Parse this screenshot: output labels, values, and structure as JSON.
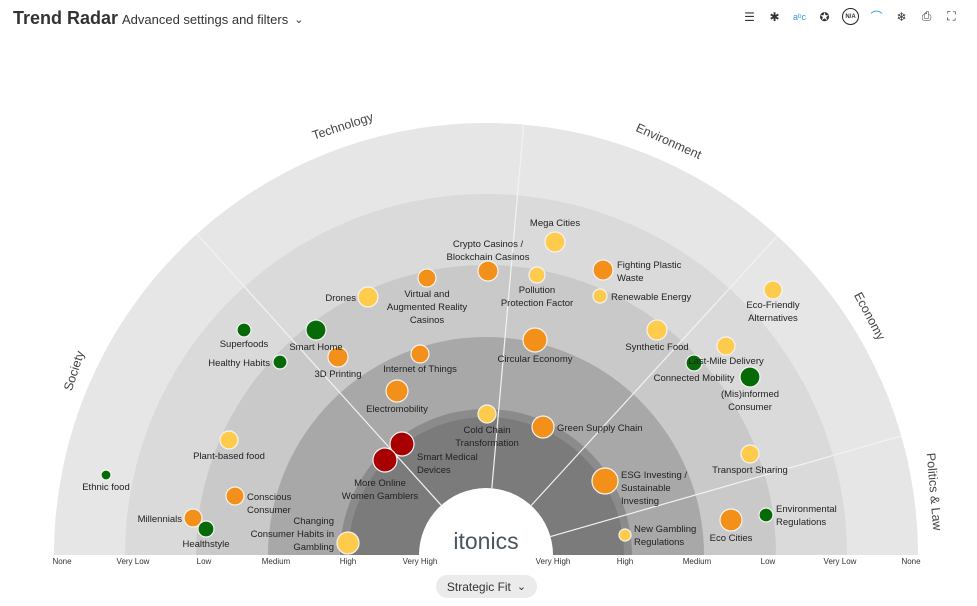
{
  "header": {
    "title": "Trend Radar",
    "advanced_label": "Advanced settings and filters"
  },
  "toolbar": [
    {
      "icon": "list-icon",
      "glyph": "☰"
    },
    {
      "icon": "network-icon",
      "glyph": "✱"
    },
    {
      "icon": "text-size-icon",
      "glyph": "aᵇc"
    },
    {
      "icon": "star-radar-icon",
      "glyph": "✪"
    },
    {
      "icon": "na-icon",
      "glyph": "N/A"
    },
    {
      "icon": "arc-icon",
      "glyph": "⌒"
    },
    {
      "icon": "snowflake-radar-icon",
      "glyph": "❄"
    },
    {
      "icon": "pdf-icon",
      "glyph": "⎙"
    },
    {
      "icon": "fullscreen-icon",
      "glyph": "⛶"
    }
  ],
  "sectors": [
    "Society",
    "Technology",
    "Environment",
    "Economy",
    "Politics & Law"
  ],
  "ticks_left": [
    "None",
    "Very Low",
    "Low",
    "Medium",
    "High",
    "Very High"
  ],
  "ticks_right": [
    "Very High",
    "High",
    "Medium",
    "Low",
    "Very Low",
    "None"
  ],
  "logo": "itonics",
  "colors": {
    "yellow": "#fecb4d",
    "orange": "#f3901a",
    "green": "#066b06",
    "red": "#a80000",
    "accent": "#2f9be0"
  },
  "trends": [
    {
      "lines": [
        "Mega Cities"
      ],
      "color": "yellow"
    },
    {
      "lines": [
        "Pollution",
        "Protection Factor"
      ],
      "color": "yellow"
    },
    {
      "lines": [
        "Crypto Casinos /",
        "Blockchain Casinos"
      ],
      "color": "orange"
    },
    {
      "lines": [
        "Fighting Plastic",
        "Waste"
      ],
      "color": "orange"
    },
    {
      "lines": [
        "Renewable Energy"
      ],
      "color": "yellow"
    },
    {
      "lines": [
        "Virtual and",
        "Augmented Reality",
        "Casinos"
      ],
      "color": "orange"
    },
    {
      "lines": [
        "Drones"
      ],
      "color": "yellow"
    },
    {
      "lines": [
        "Smart Home"
      ],
      "color": "green"
    },
    {
      "lines": [
        "Superfoods"
      ],
      "color": "green"
    },
    {
      "lines": [
        "Healthy Habits"
      ],
      "color": "green"
    },
    {
      "lines": [
        "3D Printing"
      ],
      "color": "orange"
    },
    {
      "lines": [
        "Internet of Things"
      ],
      "color": "orange"
    },
    {
      "lines": [
        "Circular Economy"
      ],
      "color": "orange"
    },
    {
      "lines": [
        "Synthetic Food"
      ],
      "color": "yellow"
    },
    {
      "lines": [
        "Eco-Friendly",
        "Alternatives"
      ],
      "color": "yellow"
    },
    {
      "lines": [
        "Last-Mile Delivery"
      ],
      "color": "yellow"
    },
    {
      "lines": [
        "Connected Mobility"
      ],
      "color": "green"
    },
    {
      "lines": [
        "(Mis)informed",
        "Consumer"
      ],
      "color": "green"
    },
    {
      "lines": [
        "Electromobility"
      ],
      "color": "orange"
    },
    {
      "lines": [
        "Cold Chain",
        "Transformation"
      ],
      "color": "yellow"
    },
    {
      "lines": [
        "Green Supply Chain"
      ],
      "color": "orange"
    },
    {
      "lines": [
        "Smart Medical",
        "Devices"
      ],
      "color": "red"
    },
    {
      "lines": [
        "More Online",
        "Women Gamblers"
      ],
      "color": "red"
    },
    {
      "lines": [
        "Plant-based food"
      ],
      "color": "yellow"
    },
    {
      "lines": [
        "Ethnic food"
      ],
      "color": "green"
    },
    {
      "lines": [
        "Conscious",
        "Consumer"
      ],
      "color": "orange"
    },
    {
      "lines": [
        "Millennials"
      ],
      "color": "orange"
    },
    {
      "lines": [
        "Healthstyle"
      ],
      "color": "green"
    },
    {
      "lines": [
        "Changing",
        "Consumer Habits in",
        "Gambling"
      ],
      "color": "yellow"
    },
    {
      "lines": [
        "ESG Investing /",
        "Sustainable",
        "Investing"
      ],
      "color": "orange"
    },
    {
      "lines": [
        "New Gambling",
        "Regulations"
      ],
      "color": "yellow"
    },
    {
      "lines": [
        "Transport Sharing"
      ],
      "color": "yellow"
    },
    {
      "lines": [
        "Eco Cities"
      ],
      "color": "orange"
    },
    {
      "lines": [
        "Environmental",
        "Regulations"
      ],
      "color": "green"
    }
  ],
  "strategic_fit": {
    "label": "Strategic Fit"
  }
}
